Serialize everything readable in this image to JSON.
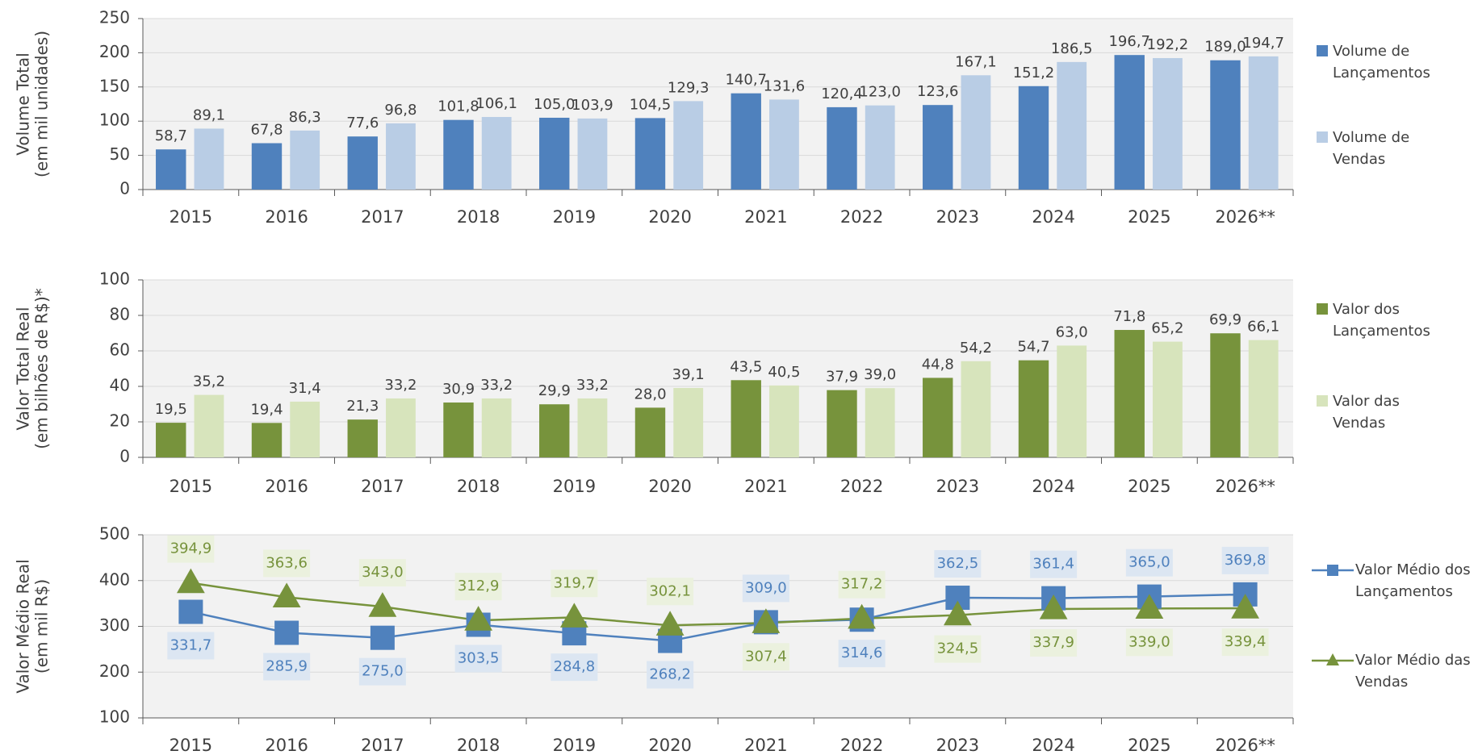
{
  "chart_data": [
    {
      "type": "bar",
      "y_label": [
        "Volume Total",
        "(em mil unidades)"
      ],
      "categories": [
        "2015",
        "2016",
        "2017",
        "2018",
        "2019",
        "2020",
        "2021",
        "2022",
        "2023",
        "2024",
        "2025",
        "2026**"
      ],
      "ylim": [
        0,
        250
      ],
      "yticks": [
        0,
        50,
        100,
        150,
        200,
        250
      ],
      "grid": true,
      "legend": "right",
      "series": [
        {
          "name": "Volume de Lançamentos",
          "color": "#4f81bd",
          "values": [
            58.7,
            67.8,
            77.6,
            101.8,
            105.0,
            104.5,
            140.7,
            120.4,
            123.6,
            151.2,
            196.7,
            189.0
          ],
          "value_labels": [
            "58,7",
            "67,8",
            "77,6",
            "101,8",
            "105,0",
            "104,5",
            "140,7",
            "120,4",
            "123,6",
            "151,2",
            "196,7",
            "189,0"
          ]
        },
        {
          "name": "Volume de Vendas",
          "color": "#b9cde5",
          "values": [
            89.1,
            86.3,
            96.8,
            106.1,
            103.9,
            129.3,
            131.6,
            123.0,
            167.1,
            186.5,
            192.2,
            194.7
          ],
          "value_labels": [
            "89,1",
            "86,3",
            "96,8",
            "106,1",
            "103,9",
            "129,3",
            "131,6",
            "123,0",
            "167,1",
            "186,5",
            "192,2",
            "194,7"
          ]
        }
      ]
    },
    {
      "type": "bar",
      "y_label": [
        "Valor Total Real",
        "(em bilhões de R$)*"
      ],
      "categories": [
        "2015",
        "2016",
        "2017",
        "2018",
        "2019",
        "2020",
        "2021",
        "2022",
        "2023",
        "2024",
        "2025",
        "2026**"
      ],
      "ylim": [
        0,
        100
      ],
      "yticks": [
        0,
        20,
        40,
        60,
        80,
        100
      ],
      "grid": true,
      "legend": "right",
      "series": [
        {
          "name": "Valor dos Lançamentos",
          "color": "#77933c",
          "values": [
            19.5,
            19.4,
            21.3,
            30.9,
            29.9,
            28.0,
            43.5,
            37.9,
            44.8,
            54.7,
            71.8,
            69.9
          ],
          "value_labels": [
            "19,5",
            "19,4",
            "21,3",
            "30,9",
            "29,9",
            "28,0",
            "43,5",
            "37,9",
            "44,8",
            "54,7",
            "71,8",
            "69,9"
          ]
        },
        {
          "name": "Valor das Vendas",
          "color": "#d7e4bc",
          "values": [
            35.2,
            31.4,
            33.2,
            33.2,
            33.2,
            39.1,
            40.5,
            39.0,
            54.2,
            63.0,
            65.2,
            66.1
          ],
          "value_labels": [
            "35,2",
            "31,4",
            "33,2",
            "33,2",
            "33,2",
            "39,1",
            "40,5",
            "39,0",
            "54,2",
            "63,0",
            "65,2",
            "66,1"
          ]
        }
      ]
    },
    {
      "type": "line",
      "y_label": [
        "Valor Médio Real",
        "(em mil R$)"
      ],
      "categories": [
        "2015",
        "2016",
        "2017",
        "2018",
        "2019",
        "2020",
        "2021",
        "2022",
        "2023",
        "2024",
        "2025",
        "2026**"
      ],
      "ylim": [
        100,
        500
      ],
      "yticks": [
        100,
        200,
        300,
        400,
        500
      ],
      "grid": true,
      "legend": "right",
      "series": [
        {
          "name": "Valor Médio dos Lançamentos",
          "color": "#4f81bd",
          "marker": "square",
          "label_color": "#dce6f2",
          "values": [
            331.7,
            285.9,
            275.0,
            303.5,
            284.8,
            268.2,
            309.0,
            314.6,
            362.5,
            361.4,
            365.0,
            369.8
          ],
          "value_labels": [
            "331,7",
            "285,9",
            "275,0",
            "303,5",
            "284,8",
            "268,2",
            "309,0",
            "314,6",
            "362,5",
            "361,4",
            "365,0",
            "369,8"
          ]
        },
        {
          "name": "Valor Médio das Vendas",
          "color": "#77933c",
          "marker": "triangle",
          "label_color": "#ebf1de",
          "values": [
            394.9,
            363.6,
            343.0,
            312.9,
            319.7,
            302.1,
            307.4,
            317.2,
            324.5,
            337.9,
            339.0,
            339.4
          ],
          "value_labels": [
            "394,9",
            "363,6",
            "343,0",
            "312,9",
            "319,7",
            "302,1",
            "307,4",
            "317,2",
            "324,5",
            "337,9",
            "339,0",
            "339,4"
          ]
        }
      ]
    }
  ]
}
